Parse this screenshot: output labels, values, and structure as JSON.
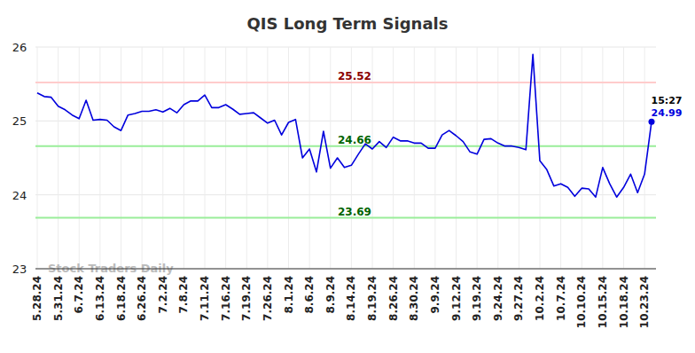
{
  "chart_data": {
    "type": "line",
    "title": "QIS Long Term Signals",
    "categories": [
      "5.28.24",
      null,
      null,
      "5.31.24",
      null,
      null,
      "6.7.24",
      null,
      null,
      "6.13.24",
      null,
      null,
      "6.18.24",
      null,
      null,
      "6.26.24",
      null,
      null,
      "7.2.24",
      null,
      null,
      "7.8.24",
      null,
      null,
      "7.11.24",
      null,
      null,
      "7.16.24",
      null,
      null,
      "7.19.24",
      null,
      null,
      "7.26.24",
      null,
      null,
      "8.1.24",
      null,
      null,
      "8.6.24",
      null,
      null,
      "8.9.24",
      null,
      null,
      "8.14.24",
      null,
      null,
      "8.19.24",
      null,
      null,
      "8.26.24",
      null,
      null,
      "8.30.24",
      null,
      null,
      "9.9.24",
      null,
      null,
      "9.12.24",
      null,
      null,
      "9.19.24",
      null,
      null,
      "9.24.24",
      null,
      null,
      "9.27.24",
      null,
      null,
      "10.2.24",
      null,
      null,
      "10.7.24",
      null,
      null,
      "10.10.24",
      null,
      null,
      "10.15.24",
      null,
      null,
      "10.18.24",
      null,
      null,
      "10.23.24",
      null
    ],
    "series": [
      {
        "name": "QIS",
        "color": "#0000dd",
        "values": [
          25.38,
          25.33,
          25.32,
          25.2,
          25.15,
          25.08,
          25.03,
          25.28,
          25.01,
          25.02,
          25.01,
          24.92,
          24.87,
          25.08,
          25.1,
          25.13,
          25.13,
          25.15,
          25.12,
          25.17,
          25.11,
          25.22,
          25.27,
          25.27,
          25.35,
          25.18,
          25.18,
          25.22,
          25.16,
          25.09,
          25.1,
          25.11,
          25.04,
          24.97,
          25.01,
          24.81,
          24.98,
          25.02,
          24.5,
          24.62,
          24.31,
          24.86,
          24.36,
          24.5,
          24.37,
          24.4,
          24.55,
          24.69,
          24.62,
          24.72,
          24.64,
          24.78,
          24.73,
          24.73,
          24.7,
          24.7,
          24.63,
          24.63,
          24.81,
          24.87,
          24.8,
          24.72,
          24.58,
          24.55,
          24.75,
          24.76,
          24.7,
          24.66,
          24.66,
          24.64,
          24.61,
          25.9,
          24.46,
          24.34,
          24.12,
          24.15,
          24.1,
          23.98,
          24.09,
          24.08,
          23.97,
          24.37,
          24.15,
          23.97,
          24.1,
          24.28,
          24.03,
          24.28,
          24.99
        ]
      }
    ],
    "ylim": [
      23,
      26
    ],
    "yticks": [
      23,
      24,
      25,
      26
    ],
    "grid": true,
    "reference_lines": [
      {
        "value": 25.52,
        "label": "25.52",
        "color": "#ffcccc",
        "label_color": "#8b0000"
      },
      {
        "value": 24.66,
        "label": "24.66",
        "color": "#99ee99",
        "label_color": "#006400"
      },
      {
        "value": 23.69,
        "label": "23.69",
        "color": "#99ee99",
        "label_color": "#006400"
      }
    ],
    "last_point_time": "15:27",
    "watermark": "Stock Traders Daily"
  }
}
